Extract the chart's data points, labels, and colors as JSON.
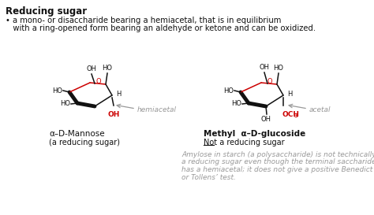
{
  "title": "Reducing sugar",
  "bullet_line1": "• a mono- or disaccharide bearing a hemiacetal, that is in equilibrium",
  "bullet_line2": "   with a ring-opened form bearing an aldehyde or ketone and can be oxidized.",
  "label_mannose": "α–D-Mannose",
  "label_mannose_sub": "(a reducing sugar)",
  "label_glucoside_a": "Methyl  α–D-glucoside",
  "label_glucoside_sub": "Not a reducing sugar",
  "hemiacetal_label": "hemiacetal",
  "acetal_label": "acetal",
  "note_line1": "Amylose in starch (a polysaccharide) is not technically",
  "note_line2": "a reducing sugar even though the terminal saccharide",
  "note_line3": "has a hemiacetal; it does not give a positive Benedict",
  "note_line4": "or Tollens’ test.",
  "bg_color": "#ffffff",
  "text_color": "#111111",
  "red_color": "#cc0000",
  "gray_color": "#999999",
  "title_fontsize": 8.5,
  "body_fontsize": 7.2,
  "label_fontsize": 7.5,
  "sub_fontsize": 7.0,
  "note_fontsize": 6.5
}
